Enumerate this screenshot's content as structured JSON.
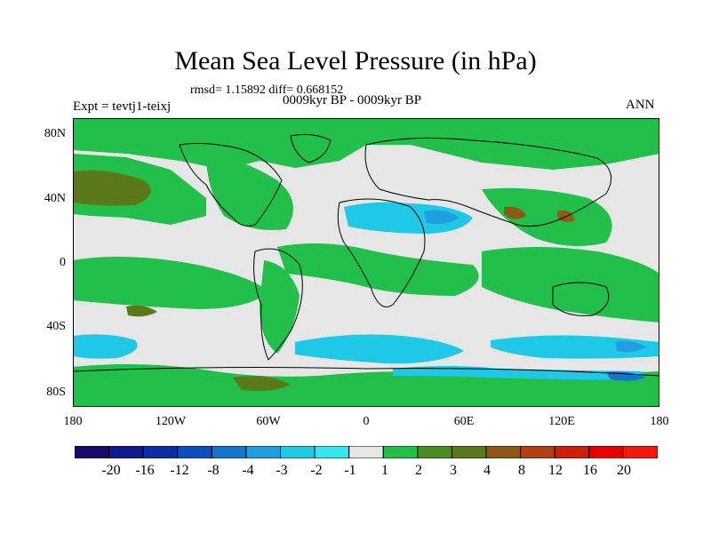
{
  "title": "Mean Sea Level Pressure (in hPa)",
  "stats": "rmsd= 1.15892 diff= 0.668152",
  "period": "0009kyr BP - 0009kyr BP",
  "experiment": "Expt = tevtj1-teixj",
  "season": "ANN",
  "map": {
    "lat_labels": [
      "80N",
      "40N",
      "0",
      "40S",
      "80S"
    ],
    "lon_labels": [
      "180",
      "120W",
      "60W",
      "0",
      "60E",
      "120E",
      "180"
    ],
    "background_color": "#e6e6e6"
  },
  "colorbar": {
    "labels": [
      "-20",
      "-16",
      "-12",
      "-8",
      "-4",
      "-3",
      "-2",
      "-1",
      "1",
      "2",
      "3",
      "4",
      "8",
      "12",
      "16",
      "20"
    ],
    "colors": [
      "#1a0a6b",
      "#0d1a8c",
      "#0a2ea6",
      "#0a4fbf",
      "#1276cf",
      "#1f9fe0",
      "#1ec8e6",
      "#33e6f0",
      "#e6e6e6",
      "#22bf4a",
      "#4a8c22",
      "#5a7a1a",
      "#8c5a14",
      "#b3400f",
      "#cc200a",
      "#e60000",
      "#f21a0a"
    ]
  }
}
